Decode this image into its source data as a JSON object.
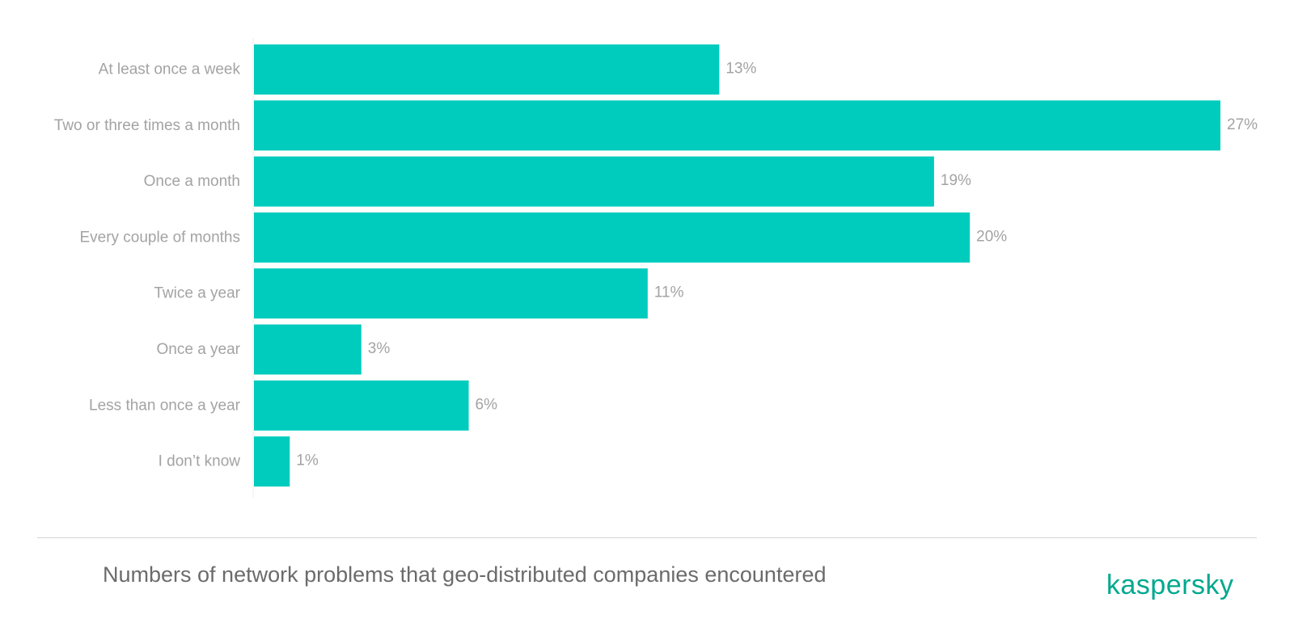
{
  "chart_data": {
    "type": "bar",
    "orientation": "horizontal",
    "categories": [
      "At least once a week",
      "Two or three times a month",
      "Once a month",
      "Every couple of months",
      "Twice a year",
      "Once a year",
      "Less than once a year",
      "I don’t know"
    ],
    "values": [
      13,
      27,
      19,
      20,
      11,
      3,
      6,
      1
    ],
    "value_labels": [
      "13%",
      "27%",
      "19%",
      "20%",
      "11%",
      "3%",
      "6%",
      "1%"
    ],
    "unit": "%",
    "xlim": [
      0,
      27
    ],
    "title": "",
    "xlabel": "",
    "ylabel": "",
    "grid": false,
    "legend": "none",
    "bar_color": "#00ccbe"
  },
  "caption": "Numbers of network problems that geo-distributed companies encountered",
  "logo": {
    "text": "kaspersky",
    "color": "#00a88e"
  },
  "colors": {
    "label_text": "#a3a3a3",
    "caption_text": "#6b6b6b",
    "axis_line": "#ececec",
    "divider": "#d4d4d4"
  }
}
